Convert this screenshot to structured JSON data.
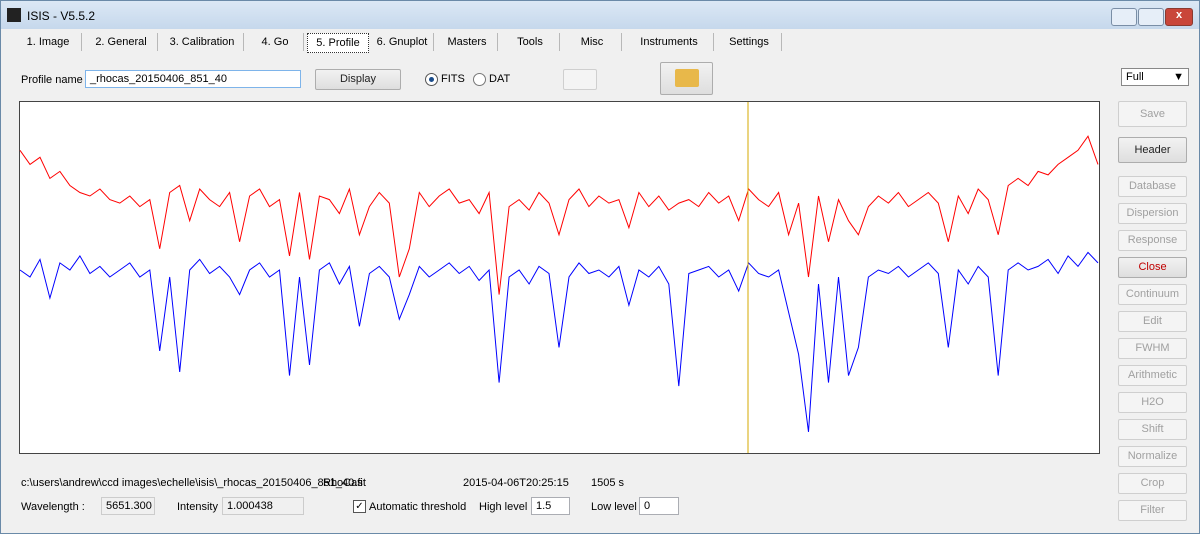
{
  "window": {
    "title": "ISIS - V5.5.2"
  },
  "tabs": [
    {
      "label": "1. Image"
    },
    {
      "label": "2. General"
    },
    {
      "label": "3. Calibration"
    },
    {
      "label": "4. Go"
    },
    {
      "label": "5. Profile",
      "selected": true
    },
    {
      "label": "6. Gnuplot"
    },
    {
      "label": "Masters"
    },
    {
      "label": "Tools"
    },
    {
      "label": "Misc"
    },
    {
      "label": "Instruments"
    },
    {
      "label": "Settings"
    }
  ],
  "toolbar": {
    "profile_label": "Profile name :",
    "profile_name": "_rhocas_20150406_851_40",
    "display_button": "Display",
    "radio_fits": "FITS",
    "radio_dat": "DAT",
    "zoom": "Full"
  },
  "side_buttons": [
    {
      "label": "Save",
      "enabled": false
    },
    {
      "label": "Header",
      "enabled": true
    },
    {
      "label": "Database",
      "enabled": false
    },
    {
      "label": "Dispersion",
      "enabled": false
    },
    {
      "label": "Response",
      "enabled": false
    },
    {
      "label": "Close",
      "enabled": true,
      "color": "#c00000"
    },
    {
      "label": "Continuum",
      "enabled": false
    },
    {
      "label": "Edit",
      "enabled": false
    },
    {
      "label": "FWHM",
      "enabled": false
    },
    {
      "label": "Arithmetic",
      "enabled": false
    },
    {
      "label": "H2O",
      "enabled": false
    },
    {
      "label": "Shift",
      "enabled": false
    },
    {
      "label": "Normalize",
      "enabled": false
    },
    {
      "label": "Crop",
      "enabled": false
    },
    {
      "label": "Filter",
      "enabled": false
    }
  ],
  "chart_data": {
    "type": "line",
    "ylim": [
      0,
      1
    ],
    "series": [
      {
        "color": "#ff0000",
        "values": [
          0.86,
          0.82,
          0.84,
          0.78,
          0.8,
          0.76,
          0.74,
          0.73,
          0.75,
          0.72,
          0.71,
          0.73,
          0.7,
          0.72,
          0.58,
          0.74,
          0.76,
          0.66,
          0.75,
          0.72,
          0.7,
          0.74,
          0.6,
          0.73,
          0.75,
          0.7,
          0.72,
          0.56,
          0.74,
          0.55,
          0.73,
          0.72,
          0.68,
          0.75,
          0.62,
          0.7,
          0.74,
          0.71,
          0.5,
          0.58,
          0.74,
          0.7,
          0.73,
          0.75,
          0.71,
          0.72,
          0.68,
          0.74,
          0.45,
          0.7,
          0.72,
          0.69,
          0.74,
          0.71,
          0.62,
          0.72,
          0.75,
          0.7,
          0.73,
          0.71,
          0.72,
          0.64,
          0.74,
          0.7,
          0.73,
          0.69,
          0.71,
          0.72,
          0.7,
          0.74,
          0.71,
          0.73,
          0.66,
          0.75,
          0.72,
          0.7,
          0.74,
          0.62,
          0.71,
          0.5,
          0.73,
          0.6,
          0.72,
          0.66,
          0.62,
          0.7,
          0.73,
          0.71,
          0.74,
          0.7,
          0.72,
          0.74,
          0.71,
          0.6,
          0.73,
          0.68,
          0.75,
          0.72,
          0.62,
          0.76,
          0.78,
          0.76,
          0.8,
          0.79,
          0.82,
          0.84,
          0.86,
          0.9,
          0.82
        ]
      },
      {
        "color": "#0000ff",
        "values": [
          0.52,
          0.5,
          0.55,
          0.44,
          0.54,
          0.52,
          0.56,
          0.51,
          0.53,
          0.5,
          0.52,
          0.54,
          0.5,
          0.52,
          0.29,
          0.5,
          0.23,
          0.52,
          0.55,
          0.51,
          0.53,
          0.5,
          0.45,
          0.52,
          0.54,
          0.5,
          0.52,
          0.22,
          0.5,
          0.25,
          0.52,
          0.54,
          0.48,
          0.53,
          0.36,
          0.51,
          0.53,
          0.5,
          0.38,
          0.45,
          0.53,
          0.5,
          0.52,
          0.54,
          0.51,
          0.53,
          0.49,
          0.52,
          0.2,
          0.5,
          0.52,
          0.48,
          0.53,
          0.51,
          0.3,
          0.5,
          0.54,
          0.51,
          0.52,
          0.5,
          0.53,
          0.42,
          0.52,
          0.5,
          0.53,
          0.48,
          0.19,
          0.51,
          0.52,
          0.53,
          0.5,
          0.52,
          0.46,
          0.54,
          0.51,
          0.5,
          0.52,
          0.4,
          0.28,
          0.06,
          0.48,
          0.2,
          0.5,
          0.22,
          0.3,
          0.5,
          0.52,
          0.51,
          0.53,
          0.5,
          0.52,
          0.54,
          0.51,
          0.3,
          0.52,
          0.48,
          0.53,
          0.5,
          0.22,
          0.52,
          0.54,
          0.52,
          0.53,
          0.55,
          0.51,
          0.56,
          0.53,
          0.57,
          0.54
        ]
      }
    ]
  },
  "status": {
    "path": "c:\\users\\andrew\\ccd images\\echelle\\isis\\_rhocas_20150406_851_40.fit",
    "object": "RhoCas",
    "date": "2015-04-06T20:25:15",
    "exposure": "1505 s",
    "wavelength_label": "Wavelength :",
    "wavelength": "5651.300",
    "intensity_label": "Intensity :",
    "intensity": "1.000438",
    "auto_threshold": "Automatic threshold",
    "high_label": "High level :",
    "high": "1.5",
    "low_label": "Low level :",
    "low": "0"
  }
}
